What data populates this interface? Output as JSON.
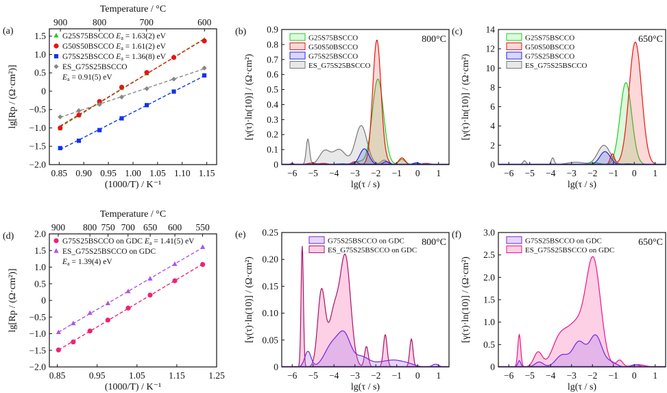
{
  "chart_data": [
    {
      "id": "a",
      "panel_label": "(a)",
      "type": "scatter",
      "xlabel": "(1000/T) / K⁻¹",
      "ylabel": "lg[Rp / (Ω·cm²)]",
      "top_xlabel": "Temperature / °C",
      "xlim": [
        0.83,
        1.17
      ],
      "ylim": [
        -2.0,
        1.7
      ],
      "x_ticks": [
        0.85,
        0.9,
        0.95,
        1.0,
        1.05,
        1.1,
        1.15
      ],
      "x_tick_labels": [
        "0.85",
        "0.90",
        "0.95",
        "1.00",
        "1.05",
        "1.10",
        "1.15"
      ],
      "y_ticks": [
        -2.0,
        -1.5,
        -1.0,
        -0.5,
        0,
        0.5,
        1.0,
        1.5
      ],
      "y_tick_labels": [
        "−2.0",
        "−1.5",
        "−1.0",
        "−0.5",
        "0",
        "0.5",
        "1.0",
        "1.5"
      ],
      "top_ticks_celsius": [
        900,
        800,
        700,
        600
      ],
      "top_tick_labels": [
        "900",
        "800",
        "700",
        "600"
      ],
      "legend_position": "top-left",
      "series": [
        {
          "name": "G25S75BSCCO",
          "ea": "1.63(2) eV",
          "marker": "triangle",
          "color": "#22cc22",
          "x": [
            0.852,
            0.89,
            0.932,
            0.977,
            1.028,
            1.083,
            1.145
          ],
          "y": [
            -1.02,
            -0.66,
            -0.29,
            0.08,
            0.48,
            0.93,
            1.4
          ]
        },
        {
          "name": "G50S50BSCCO",
          "ea": "1.61(2) eV",
          "marker": "circle",
          "color": "#ee1111",
          "x": [
            0.852,
            0.89,
            0.932,
            0.977,
            1.028,
            1.083,
            1.145
          ],
          "y": [
            -1.0,
            -0.65,
            -0.28,
            0.11,
            0.51,
            0.92,
            1.37
          ]
        },
        {
          "name": "G75S25BSCCO",
          "ea": "1.36(8) eV",
          "marker": "square",
          "color": "#1133ee",
          "x": [
            0.852,
            0.89,
            0.932,
            0.977,
            1.028,
            1.083,
            1.145
          ],
          "y": [
            -1.55,
            -1.35,
            -1.06,
            -0.74,
            -0.38,
            -0.01,
            0.43
          ]
        },
        {
          "name": "ES_G75S25BSCCO",
          "ea": "0.91(5) eV",
          "marker": "diamond",
          "color": "#888888",
          "x": [
            0.852,
            0.89,
            0.932,
            0.977,
            1.028,
            1.083,
            1.145
          ],
          "y": [
            -0.7,
            -0.53,
            -0.36,
            -0.16,
            0.07,
            0.33,
            0.63
          ]
        }
      ]
    },
    {
      "id": "b",
      "panel_label": "(b)",
      "type": "area",
      "annotation": "800°C",
      "xlabel": "lg(τ / s)",
      "ylabel": "[γ(τ)·ln(10)] / (Ω·cm²)",
      "xlim": [
        -6.5,
        1.5
      ],
      "ylim": [
        0,
        0.9
      ],
      "x_ticks": [
        -6,
        -5,
        -4,
        -3,
        -2,
        -1,
        0,
        1
      ],
      "x_tick_labels": [
        "−6",
        "−5",
        "−4",
        "−3",
        "−2",
        "−1",
        "0",
        "1"
      ],
      "y_ticks": [
        0,
        0.1,
        0.2,
        0.3,
        0.4,
        0.5,
        0.6,
        0.7,
        0.8,
        0.9
      ],
      "y_tick_labels": [
        "0",
        "0.1",
        "0.2",
        "0.3",
        "0.4",
        "0.5",
        "0.6",
        "0.7",
        "0.8",
        "0.9"
      ],
      "legend_position": "top-left",
      "series": [
        {
          "name": "ES_G75S25BSCCO",
          "stroke": "#777777",
          "fill": "rgba(190,190,190,0.35)",
          "peaks": [
            [
              -5.25,
              0.17,
              0.08
            ],
            [
              -4.45,
              0.09,
              0.25
            ],
            [
              -3.75,
              0.1,
              0.3
            ],
            [
              -2.7,
              0.26,
              0.28
            ],
            [
              -1.6,
              0.03,
              0.15
            ]
          ]
        },
        {
          "name": "G25S75BSCCO",
          "stroke": "#22cc22",
          "fill": "rgba(60,230,60,0.18)",
          "peaks": [
            [
              -2.8,
              0.02,
              0.3
            ],
            [
              -1.9,
              0.57,
              0.27
            ],
            [
              -0.75,
              0.035,
              0.15
            ],
            [
              -0.1,
              0.01,
              0.15
            ]
          ]
        },
        {
          "name": "G50S50BSCCO",
          "stroke": "#ee1111",
          "fill": "rgba(240,60,60,0.2)",
          "peaks": [
            [
              -6.0,
              0.008,
              0.08
            ],
            [
              -5.1,
              0.01,
              0.2
            ],
            [
              -4.5,
              0.008,
              0.2
            ],
            [
              -3.0,
              0.02,
              0.15
            ],
            [
              -1.95,
              0.83,
              0.2
            ],
            [
              -1.45,
              0.015,
              0.12
            ],
            [
              -0.75,
              0.045,
              0.15
            ],
            [
              0.4,
              0.008,
              0.2
            ]
          ]
        },
        {
          "name": "G75S25BSCCO",
          "stroke": "#2222ee",
          "fill": "rgba(60,60,240,0.2)",
          "peaks": [
            [
              -3.6,
              0.005,
              0.3
            ],
            [
              -2.55,
              0.105,
              0.22
            ],
            [
              -1.5,
              0.02,
              0.15
            ],
            [
              -0.05,
              0.012,
              0.15
            ]
          ]
        }
      ]
    },
    {
      "id": "c",
      "panel_label": "(c)",
      "type": "area",
      "annotation": "650°C",
      "xlabel": "lg(τ / s)",
      "ylabel": "[γ(τ)·ln(10)] / (Ω·cm²)",
      "xlim": [
        -6.5,
        1.5
      ],
      "ylim": [
        0,
        14
      ],
      "x_ticks": [
        -6,
        -5,
        -4,
        -3,
        -2,
        -1,
        0,
        1
      ],
      "x_tick_labels": [
        "−6",
        "−5",
        "−4",
        "−3",
        "−2",
        "−1",
        "0",
        "1"
      ],
      "y_ticks": [
        0,
        2,
        4,
        6,
        8,
        10,
        12,
        14
      ],
      "y_tick_labels": [
        "0",
        "2",
        "4",
        "6",
        "8",
        "10",
        "12",
        "14"
      ],
      "legend_position": "top-left",
      "series": [
        {
          "name": "ES_G75S25BSCCO",
          "stroke": "#777777",
          "fill": "rgba(190,190,190,0.35)",
          "peaks": [
            [
              -5.25,
              0.4,
              0.08
            ],
            [
              -3.9,
              0.7,
              0.07
            ],
            [
              -2.8,
              0.25,
              0.4
            ],
            [
              -1.45,
              2.0,
              0.3
            ],
            [
              -0.3,
              0.1,
              0.2
            ]
          ]
        },
        {
          "name": "G25S75BSCCO",
          "stroke": "#22cc22",
          "fill": "rgba(60,230,60,0.18)",
          "peaks": [
            [
              -1.9,
              0.2,
              0.25
            ],
            [
              -0.4,
              8.5,
              0.28
            ]
          ]
        },
        {
          "name": "G50S50BSCCO",
          "stroke": "#ee1111",
          "fill": "rgba(240,60,60,0.2)",
          "peaks": [
            [
              -1.05,
              1.1,
              0.1
            ],
            [
              0.05,
              12.7,
              0.3
            ]
          ]
        },
        {
          "name": "G75S25BSCCO",
          "stroke": "#2222ee",
          "fill": "rgba(60,60,240,0.2)",
          "peaks": [
            [
              -1.4,
              1.35,
              0.25
            ]
          ]
        }
      ]
    },
    {
      "id": "d",
      "panel_label": "(d)",
      "type": "scatter",
      "xlabel": "(1000/T) / K⁻¹",
      "ylabel": "lg[Rp / (Ω·cm²)]",
      "top_xlabel": "Temperature / °C",
      "xlim": [
        0.83,
        1.25
      ],
      "ylim": [
        -2.0,
        2.0
      ],
      "x_ticks": [
        0.85,
        0.95,
        1.05,
        1.15,
        1.25
      ],
      "x_tick_labels": [
        "0.85",
        "0.95",
        "1.05",
        "1.15",
        "1.25"
      ],
      "y_ticks": [
        -2.0,
        -1.5,
        -1.0,
        -0.5,
        0,
        0.5,
        1.0,
        1.5,
        2.0
      ],
      "y_tick_labels": [
        "−2.0",
        "−1.5",
        "−1.0",
        "−0.5",
        "0",
        "0.5",
        "1.0",
        "1.5",
        "2.0"
      ],
      "top_ticks_celsius": [
        900,
        800,
        750,
        700,
        650,
        600,
        550
      ],
      "top_tick_labels": [
        "900",
        "800",
        "750",
        "700",
        "650",
        "600",
        "550"
      ],
      "legend_position": "top-left",
      "series": [
        {
          "name": "G75S25BSCCO on GDC",
          "ea": "1.41(5) eV",
          "marker": "circle",
          "color": "#ee2277",
          "x": [
            0.853,
            0.89,
            0.932,
            0.977,
            1.028,
            1.083,
            1.145,
            1.215
          ],
          "y": [
            -1.49,
            -1.25,
            -0.92,
            -0.59,
            -0.23,
            0.16,
            0.59,
            1.08
          ]
        },
        {
          "name": "ES_G75S25BSCCO on GDC",
          "ea": "1.39(4) eV",
          "marker": "triangle",
          "color": "#aa55ee",
          "x": [
            0.853,
            0.89,
            0.932,
            0.977,
            1.028,
            1.083,
            1.145,
            1.215
          ],
          "y": [
            -0.96,
            -0.69,
            -0.38,
            -0.09,
            0.27,
            0.65,
            1.09,
            1.6
          ]
        }
      ]
    },
    {
      "id": "e",
      "panel_label": "(e)",
      "type": "area",
      "annotation": "800°C",
      "xlabel": "lg(τ / s)",
      "ylabel": "[γ(τ)·ln(10)] / (Ω·cm²)",
      "xlim": [
        -6.5,
        1.5
      ],
      "ylim": [
        0,
        0.25
      ],
      "x_ticks": [
        -6,
        -5,
        -4,
        -3,
        -2,
        -1,
        0,
        1
      ],
      "x_tick_labels": [
        "−6",
        "−5",
        "−4",
        "−3",
        "−2",
        "−1",
        "0",
        "1"
      ],
      "y_ticks": [
        0,
        0.05,
        0.1,
        0.15,
        0.2,
        0.25
      ],
      "y_tick_labels": [
        "0",
        "0.05",
        "0.10",
        "0.15",
        "0.20",
        "0.25"
      ],
      "legend_position": "top-center",
      "series": [
        {
          "name": "ES_G75S25BSCCO on GDC",
          "stroke": "#aa1166",
          "fill": "rgba(250,150,200,0.45)",
          "peaks": [
            [
              -5.52,
              0.225,
              0.055
            ],
            [
              -4.6,
              0.14,
              0.18
            ],
            [
              -4.0,
              0.1,
              0.25
            ],
            [
              -3.45,
              0.2,
              0.25
            ],
            [
              -2.45,
              0.038,
              0.09
            ],
            [
              -1.55,
              0.06,
              0.09
            ],
            [
              -0.3,
              0.052,
              0.08
            ]
          ]
        },
        {
          "name": "G75S25BSCCO on GDC",
          "stroke": "#7722dd",
          "fill": "rgba(170,120,240,0.3)",
          "peaks": [
            [
              -5.25,
              0.029,
              0.15
            ],
            [
              -4.1,
              0.04,
              0.35
            ],
            [
              -3.5,
              0.055,
              0.3
            ],
            [
              -2.7,
              0.018,
              0.35
            ],
            [
              -1.7,
              0.008,
              0.5
            ],
            [
              -1.0,
              0.009,
              0.4
            ],
            [
              -0.4,
              0.004,
              0.3
            ],
            [
              0.85,
              0.005,
              0.15
            ]
          ]
        }
      ]
    },
    {
      "id": "f",
      "panel_label": "(f)",
      "type": "area",
      "annotation": "650°C",
      "xlabel": "lg(τ / s)",
      "ylabel": "[γ(τ)·ln(10)] / (Ω·cm²)",
      "xlim": [
        -6.5,
        1.5
      ],
      "ylim": [
        0,
        3.0
      ],
      "x_ticks": [
        -6,
        -5,
        -4,
        -3,
        -2,
        -1,
        0,
        1
      ],
      "x_tick_labels": [
        "−6",
        "−5",
        "−4",
        "−3",
        "−2",
        "−1",
        "0",
        "1"
      ],
      "y_ticks": [
        0,
        0.5,
        1.0,
        1.5,
        2.0,
        2.5,
        3.0
      ],
      "y_tick_labels": [
        "0",
        "0.5",
        "1.0",
        "1.5",
        "2.0",
        "2.5",
        "3.0"
      ],
      "legend_position": "top-left",
      "series": [
        {
          "name": "ES_G75S25BSCCO on GDC",
          "stroke": "#ee1188",
          "fill": "rgba(250,150,200,0.45)",
          "peaks": [
            [
              -5.5,
              0.72,
              0.07
            ],
            [
              -4.6,
              0.33,
              0.2
            ],
            [
              -3.6,
              0.55,
              0.35
            ],
            [
              -2.8,
              0.9,
              0.45
            ],
            [
              -1.95,
              2.3,
              0.35
            ],
            [
              -0.7,
              0.15,
              0.15
            ],
            [
              0.2,
              0.05,
              0.3
            ]
          ]
        },
        {
          "name": "G75S25BSCCO on GDC",
          "stroke": "#7722dd",
          "fill": "rgba(170,120,240,0.3)",
          "peaks": [
            [
              -5.5,
              0.14,
              0.07
            ],
            [
              -4.55,
              0.11,
              0.2
            ],
            [
              -3.45,
              0.26,
              0.3
            ],
            [
              -2.65,
              0.55,
              0.3
            ],
            [
              -1.85,
              0.7,
              0.3
            ],
            [
              -1.1,
              0.1,
              0.25
            ],
            [
              0.05,
              0.05,
              0.2
            ]
          ]
        }
      ]
    }
  ]
}
